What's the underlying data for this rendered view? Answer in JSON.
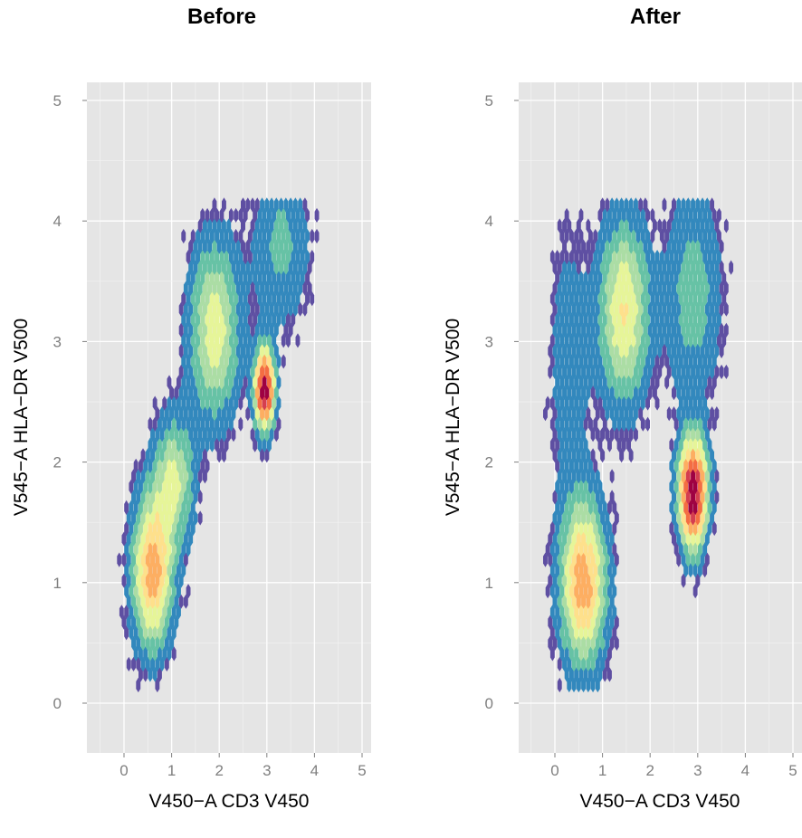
{
  "chart_data": [
    {
      "type": "heatmap",
      "title": "Before",
      "xlabel": "V450−A CD3 V450",
      "ylabel": "V545−A HLA−DR V500",
      "xlim": [
        -0.8,
        5.2
      ],
      "ylim": [
        -0.4,
        5.2
      ],
      "x_ticks": [
        "0",
        "1",
        "2",
        "3",
        "4",
        "5"
      ],
      "y_ticks": [
        "0",
        "1",
        "2",
        "3",
        "4",
        "5"
      ],
      "grid": true,
      "colormap": [
        "#5e4fa2",
        "#3288bd",
        "#66c2a5",
        "#abdda4",
        "#e6f598",
        "#fee08b",
        "#fdae61",
        "#f46d43",
        "#d53e4f",
        "#9e0142"
      ],
      "populations": [
        {
          "x": 0.6,
          "y": 1.1,
          "sx": 0.28,
          "sy": 0.42,
          "density": 0.62
        },
        {
          "x": 1.05,
          "y": 1.85,
          "sx": 0.28,
          "sy": 0.35,
          "density": 0.35
        },
        {
          "x": 1.9,
          "y": 3.1,
          "sx": 0.35,
          "sy": 0.5,
          "density": 0.4
        },
        {
          "x": 2.95,
          "y": 2.6,
          "sx": 0.14,
          "sy": 0.22,
          "density": 1.0
        },
        {
          "x": 3.3,
          "y": 3.8,
          "sx": 0.4,
          "sy": 0.45,
          "density": 0.18
        }
      ]
    },
    {
      "type": "heatmap",
      "title": "After",
      "xlabel": "V450−A CD3 V450",
      "ylabel": "V545−A HLA−DR V500",
      "xlim": [
        -0.8,
        5.2
      ],
      "ylim": [
        -0.4,
        5.2
      ],
      "x_ticks": [
        "0",
        "1",
        "2",
        "3",
        "4",
        "5"
      ],
      "y_ticks": [
        "0",
        "1",
        "2",
        "3",
        "4",
        "5"
      ],
      "grid": true,
      "colormap": [
        "#5e4fa2",
        "#3288bd",
        "#66c2a5",
        "#abdda4",
        "#e6f598",
        "#fee08b",
        "#fdae61",
        "#f46d43",
        "#d53e4f",
        "#9e0142"
      ],
      "populations": [
        {
          "x": 0.6,
          "y": 1.0,
          "sx": 0.32,
          "sy": 0.45,
          "density": 0.62
        },
        {
          "x": 1.45,
          "y": 3.25,
          "sx": 0.35,
          "sy": 0.5,
          "density": 0.45
        },
        {
          "x": 2.9,
          "y": 1.75,
          "sx": 0.2,
          "sy": 0.3,
          "density": 1.0
        },
        {
          "x": 2.9,
          "y": 3.4,
          "sx": 0.4,
          "sy": 0.6,
          "density": 0.2
        },
        {
          "x": 0.3,
          "y": 2.8,
          "sx": 0.3,
          "sy": 0.8,
          "density": 0.12
        }
      ]
    }
  ]
}
